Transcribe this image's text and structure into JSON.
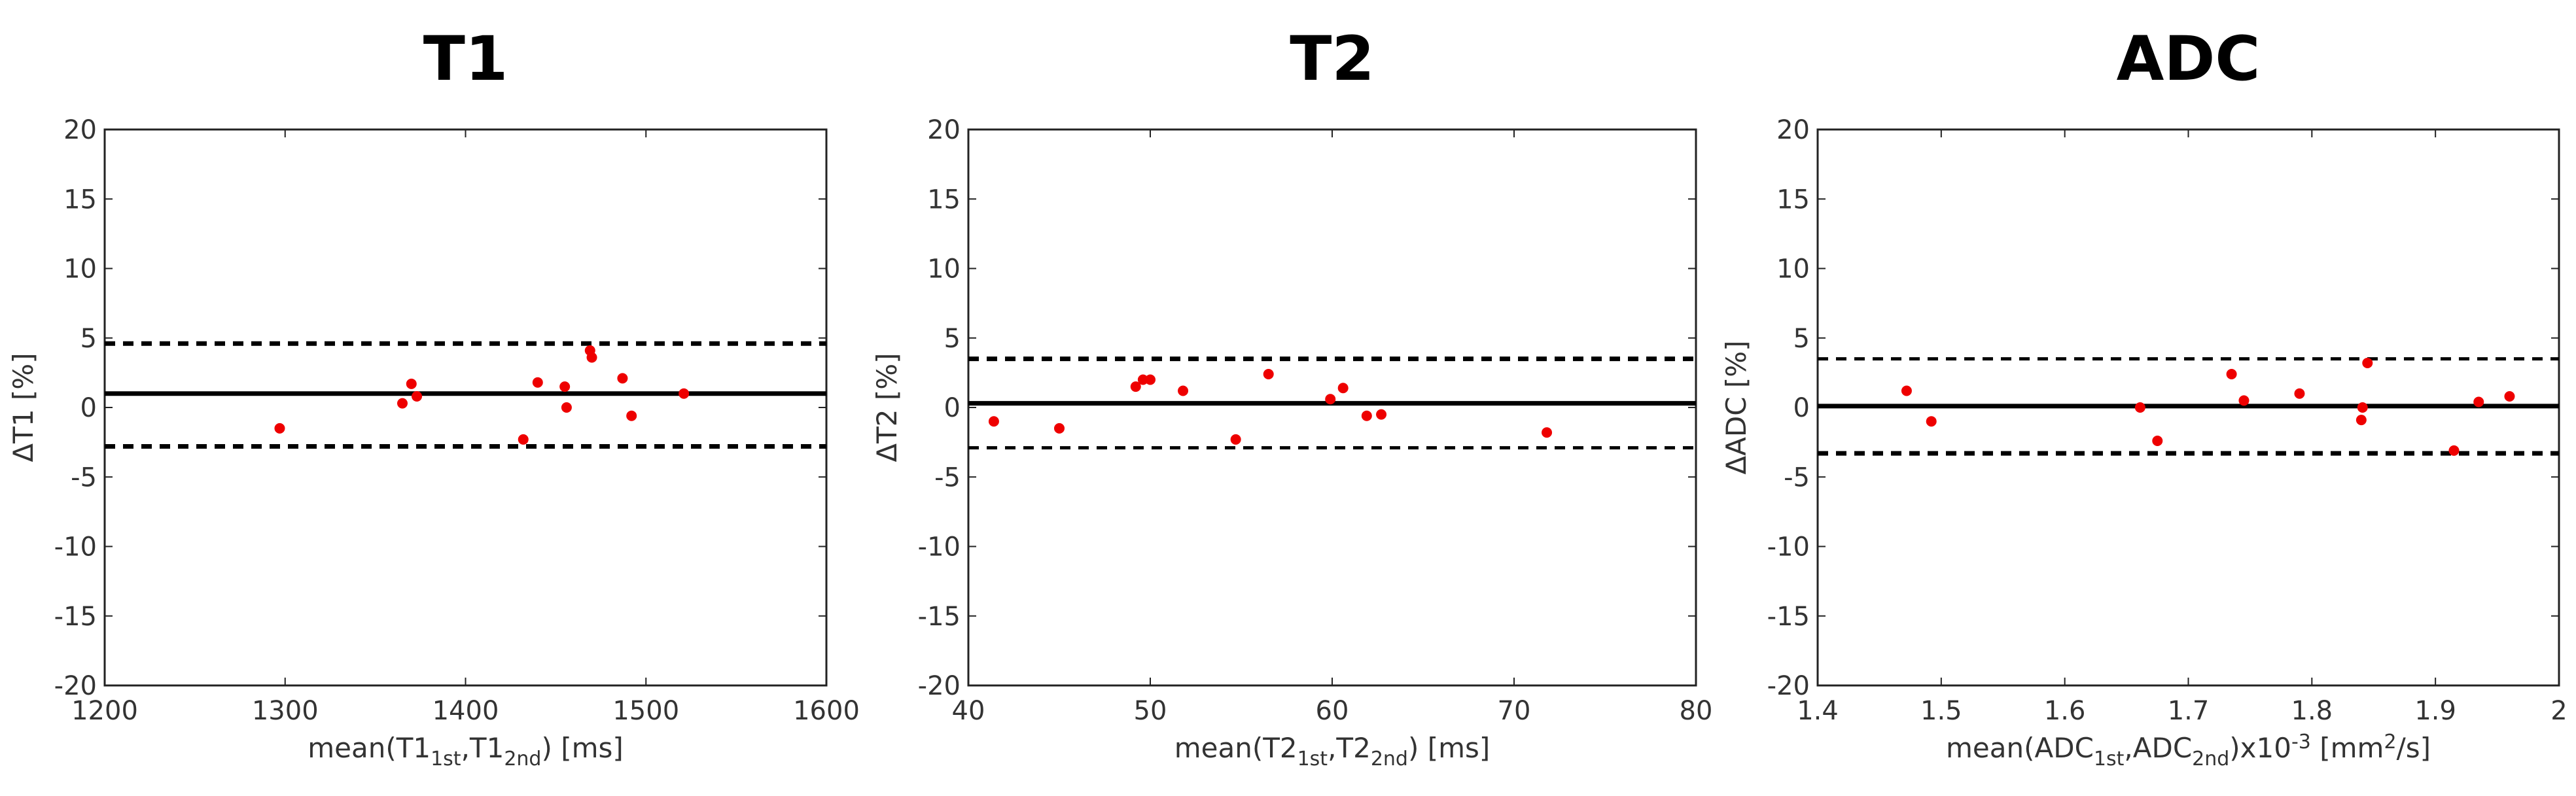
{
  "chart_data": [
    {
      "type": "scatter",
      "title": "T1",
      "xlabel": "mean(T1_1st,T1_2nd) [ms]",
      "xlabel_parts": [
        [
          "mean(T1",
          ""
        ],
        [
          "1st",
          "sub"
        ],
        [
          ",T1",
          ""
        ],
        [
          "2nd",
          "sub"
        ],
        [
          ") [ms]",
          ""
        ]
      ],
      "ylabel": "ΔT1 [%]",
      "xlim": [
        1200,
        1600
      ],
      "ylim": [
        -20,
        20
      ],
      "xticks": [
        "1200",
        "1300",
        "1400",
        "1500",
        "1600"
      ],
      "yticks": [
        "20",
        "15",
        "10",
        "5",
        "0",
        "-5",
        "-10",
        "-15",
        "-20"
      ],
      "mean": 1.0,
      "upper_limit": 4.6,
      "lower_limit": -2.8,
      "points": [
        [
          1297,
          -1.5
        ],
        [
          1365,
          0.3
        ],
        [
          1370,
          1.7
        ],
        [
          1373,
          0.8
        ],
        [
          1432,
          -2.3
        ],
        [
          1440,
          1.8
        ],
        [
          1455,
          1.5
        ],
        [
          1456,
          0.0
        ],
        [
          1469,
          4.1
        ],
        [
          1470,
          3.6
        ],
        [
          1487,
          2.1
        ],
        [
          1492,
          -0.6
        ],
        [
          1521,
          1.0
        ]
      ],
      "mean_line": "solid",
      "limit_lines": "dashed",
      "grid": false,
      "legend": "none"
    },
    {
      "type": "scatter",
      "title": "T2",
      "xlabel": "mean(T2_1st,T2_2nd) [ms]",
      "xlabel_parts": [
        [
          "mean(T2",
          ""
        ],
        [
          "1st",
          "sub"
        ],
        [
          ",T2",
          ""
        ],
        [
          "2nd",
          "sub"
        ],
        [
          ") [ms]",
          ""
        ]
      ],
      "ylabel": "ΔT2 [%]",
      "xlim": [
        40,
        80
      ],
      "ylim": [
        -20,
        20
      ],
      "xticks": [
        "40",
        "50",
        "60",
        "70",
        "80"
      ],
      "yticks": [
        "20",
        "15",
        "10",
        "5",
        "0",
        "-5",
        "-10",
        "-15",
        "-20"
      ],
      "mean": 0.3,
      "upper_limit": 3.5,
      "lower_limit": -2.9,
      "points": [
        [
          41.4,
          -1.0
        ],
        [
          45.0,
          -1.5
        ],
        [
          49.2,
          1.5
        ],
        [
          49.6,
          2.0
        ],
        [
          50.0,
          2.0
        ],
        [
          51.8,
          1.2
        ],
        [
          54.7,
          -2.3
        ],
        [
          56.5,
          2.4
        ],
        [
          59.9,
          0.6
        ],
        [
          60.6,
          1.4
        ],
        [
          61.9,
          -0.6
        ],
        [
          62.7,
          -0.5
        ],
        [
          71.8,
          -1.8
        ]
      ],
      "mean_line": "solid",
      "limit_lines": "dashed",
      "grid": false,
      "legend": "none"
    },
    {
      "type": "scatter",
      "title": "ADC",
      "xlabel": "mean(ADC_1st,ADC_2nd)x10^-3 [mm^2/s]",
      "xlabel_parts": [
        [
          "mean(ADC",
          ""
        ],
        [
          "1st",
          "sub"
        ],
        [
          ",ADC",
          ""
        ],
        [
          "2nd",
          "sub"
        ],
        [
          ")x10",
          ""
        ],
        [
          "-3",
          "sup"
        ],
        [
          " [mm",
          ""
        ],
        [
          "2",
          "sup"
        ],
        [
          "/s]",
          ""
        ]
      ],
      "ylabel": "ΔADC [%]",
      "xlim": [
        1.4,
        2.0
      ],
      "ylim": [
        -20,
        20
      ],
      "xticks": [
        "1.4",
        "1.5",
        "1.6",
        "1.7",
        "1.8",
        "1.9",
        "2"
      ],
      "yticks": [
        "20",
        "15",
        "10",
        "5",
        "0",
        "-5",
        "-10",
        "-15",
        "-20"
      ],
      "mean": 0.1,
      "upper_limit": 3.5,
      "lower_limit": -3.3,
      "points": [
        [
          1.472,
          1.2
        ],
        [
          1.492,
          -1.0
        ],
        [
          1.661,
          0.0
        ],
        [
          1.675,
          -2.4
        ],
        [
          1.735,
          2.4
        ],
        [
          1.745,
          0.5
        ],
        [
          1.79,
          1.0
        ],
        [
          1.84,
          -0.9
        ],
        [
          1.841,
          0.0
        ],
        [
          1.845,
          3.2
        ],
        [
          1.915,
          -3.1
        ],
        [
          1.935,
          0.4
        ],
        [
          1.96,
          0.8
        ]
      ],
      "mean_line": "solid",
      "limit_lines": "dashed",
      "grid": false,
      "legend": "none"
    }
  ]
}
